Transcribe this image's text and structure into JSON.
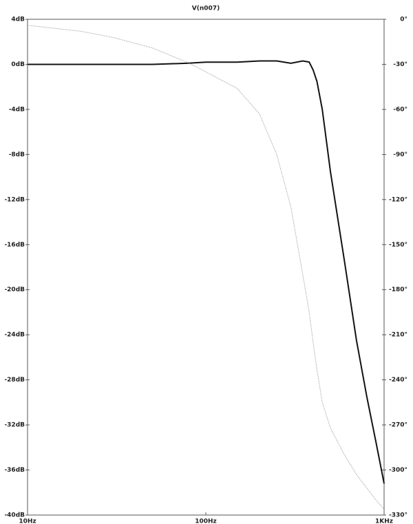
{
  "chart_data": {
    "type": "line",
    "title": "V(n007)",
    "xscale": "log",
    "x": [
      10,
      20,
      30,
      50,
      80,
      100,
      150,
      200,
      250,
      300,
      350,
      380,
      400,
      420,
      450,
      500,
      600,
      700,
      800,
      900,
      1000
    ],
    "series": [
      {
        "color": "#111111",
        "values": [
          0,
          0,
          0,
          0,
          0.1,
          0.2,
          0.2,
          0.3,
          0.3,
          0.1,
          0.3,
          0.2,
          -0.5,
          -1.5,
          -4,
          -9.5,
          -17.5,
          -24.5,
          -29.5,
          -33.5,
          -37.2
        ]
      },
      {
        "color": "#888888",
        "axis": "y2",
        "values": [
          -4,
          -8,
          -12,
          -19,
          -29,
          -35,
          -46,
          -63,
          -90,
          -125,
          -170,
          -195,
          -215,
          -233,
          -255,
          -272,
          -290,
          -303,
          -312,
          -320,
          -326
        ]
      }
    ],
    "xlim": [
      10,
      1000
    ],
    "xticks": [
      {
        "value": 10,
        "label": "10Hz"
      },
      {
        "value": 100,
        "label": "100Hz"
      },
      {
        "value": 1000,
        "label": "1KHz"
      }
    ],
    "ylim": [
      -40,
      4
    ],
    "yticks": [
      {
        "value": 4,
        "label": "4dB"
      },
      {
        "value": 0,
        "label": "0dB"
      },
      {
        "value": -4,
        "label": "-4dB"
      },
      {
        "value": -8,
        "label": "-8dB"
      },
      {
        "value": -12,
        "label": "-12dB"
      },
      {
        "value": -16,
        "label": "-16dB"
      },
      {
        "value": -20,
        "label": "-20dB"
      },
      {
        "value": -24,
        "label": "-24dB"
      },
      {
        "value": -28,
        "label": "-28dB"
      },
      {
        "value": -32,
        "label": "-32dB"
      },
      {
        "value": -36,
        "label": "-36dB"
      },
      {
        "value": -40,
        "label": "-40dB"
      }
    ],
    "y2lim": [
      -330,
      0
    ],
    "y2ticks": [
      {
        "value": 0,
        "label": "0°"
      },
      {
        "value": -30,
        "label": "-30°"
      },
      {
        "value": -60,
        "label": "-60°"
      },
      {
        "value": -90,
        "label": "-90°"
      },
      {
        "value": -120,
        "label": "-120°"
      },
      {
        "value": -150,
        "label": "-150°"
      },
      {
        "value": -180,
        "label": "-180°"
      },
      {
        "value": -210,
        "label": "-210°"
      },
      {
        "value": -240,
        "label": "-240°"
      },
      {
        "value": -270,
        "label": "-270°"
      },
      {
        "value": -300,
        "label": "-300°"
      },
      {
        "value": -330,
        "label": "-330°"
      }
    ],
    "grid": false
  }
}
